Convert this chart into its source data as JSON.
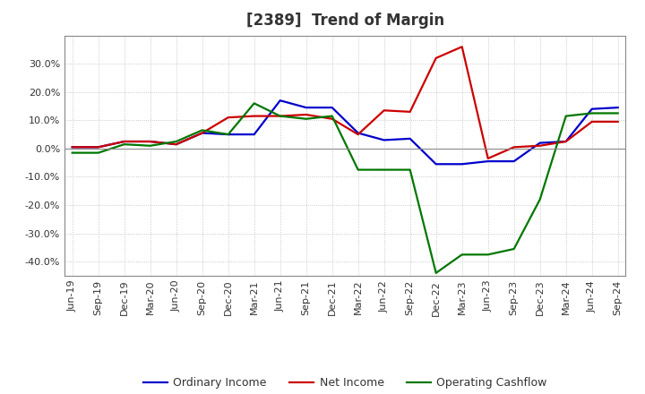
{
  "title": "[2389]  Trend of Margin",
  "x_labels": [
    "Jun-19",
    "Sep-19",
    "Dec-19",
    "Mar-20",
    "Jun-20",
    "Sep-20",
    "Dec-20",
    "Mar-21",
    "Jun-21",
    "Sep-21",
    "Dec-21",
    "Mar-22",
    "Jun-22",
    "Sep-22",
    "Dec-22",
    "Mar-23",
    "Jun-23",
    "Sep-23",
    "Dec-23",
    "Mar-24",
    "Jun-24",
    "Sep-24"
  ],
  "ordinary_income": [
    0.5,
    0.5,
    2.5,
    2.5,
    1.5,
    5.5,
    5.0,
    5.0,
    17.0,
    14.5,
    14.5,
    5.5,
    3.0,
    3.5,
    -5.5,
    -5.5,
    -4.5,
    -4.5,
    2.0,
    2.5,
    14.0,
    14.5
  ],
  "net_income": [
    0.5,
    0.5,
    2.5,
    2.5,
    1.5,
    5.5,
    11.0,
    11.5,
    11.5,
    12.0,
    10.5,
    5.0,
    13.5,
    13.0,
    32.0,
    36.0,
    -3.5,
    0.5,
    1.0,
    2.5,
    9.5,
    9.5
  ],
  "operating_cashflow": [
    -1.5,
    -1.5,
    1.5,
    1.0,
    2.5,
    6.5,
    5.0,
    16.0,
    11.5,
    10.5,
    11.5,
    -7.5,
    -7.5,
    -7.5,
    -44.0,
    -37.5,
    -37.5,
    -35.5,
    -18.0,
    11.5,
    12.5,
    12.5
  ],
  "ylim": [
    -45,
    40
  ],
  "yticks": [
    -40,
    -30,
    -20,
    -10,
    0,
    10,
    20,
    30
  ],
  "line_colors": {
    "ordinary_income": "#0000cc",
    "net_income": "#cc0000",
    "operating_cashflow": "#007700"
  },
  "legend_labels": [
    "Ordinary Income",
    "Net Income",
    "Operating Cashflow"
  ],
  "background_color": "#ffffff",
  "grid_color": "#bbbbbb",
  "title_fontsize": 12,
  "axis_fontsize": 8,
  "legend_fontsize": 9,
  "title_color": "#333333"
}
